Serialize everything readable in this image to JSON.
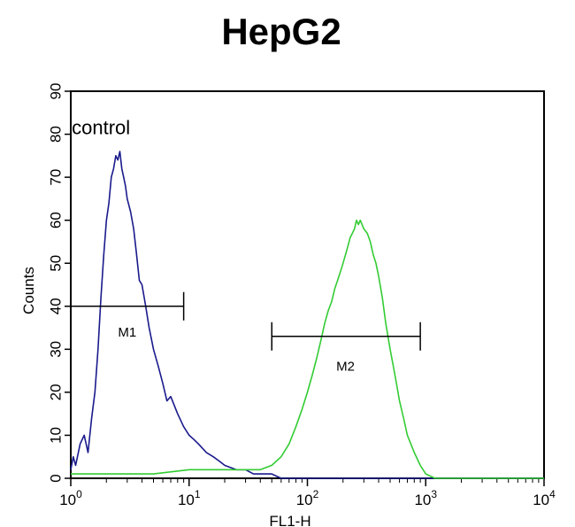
{
  "chart_data": {
    "type": "line",
    "title": "HepG2",
    "xlabel": "FL1-H",
    "ylabel": "Counts",
    "x_scale": "log",
    "xlim": [
      1,
      10000
    ],
    "ylim": [
      0,
      90
    ],
    "x_ticks": [
      {
        "value": 1,
        "base": "10",
        "exp": "0"
      },
      {
        "value": 10,
        "base": "10",
        "exp": "1"
      },
      {
        "value": 100,
        "base": "10",
        "exp": "2"
      },
      {
        "value": 1000,
        "base": "10",
        "exp": "3"
      },
      {
        "value": 10000,
        "base": "10",
        "exp": "4"
      }
    ],
    "y_ticks": [
      0,
      10,
      20,
      30,
      40,
      50,
      60,
      70,
      80,
      90
    ],
    "series": [
      {
        "name": "control",
        "color": "#1a1a8c",
        "x": [
          1.0,
          1.05,
          1.1,
          1.2,
          1.3,
          1.4,
          1.5,
          1.6,
          1.7,
          1.8,
          1.9,
          2.0,
          2.1,
          2.2,
          2.3,
          2.4,
          2.5,
          2.6,
          2.7,
          2.8,
          2.9,
          3.0,
          3.2,
          3.4,
          3.6,
          3.8,
          4.0,
          4.3,
          4.6,
          5.0,
          5.5,
          6.0,
          6.5,
          7.0,
          8.0,
          9.0,
          10.0,
          11.0,
          12.0,
          14.0,
          16.0,
          18.0,
          20.0,
          25.0,
          30.0,
          35.0,
          40.0,
          50.0,
          60.0,
          80.0,
          100.0,
          200.0,
          500.0,
          1000.0,
          10000.0
        ],
        "y": [
          2,
          5,
          3,
          8,
          10,
          6,
          14,
          20,
          30,
          42,
          52,
          60,
          64,
          70,
          72,
          75,
          74,
          76,
          72,
          70,
          68,
          65,
          62,
          58,
          52,
          46,
          45,
          40,
          35,
          30,
          26,
          22,
          18,
          19,
          15,
          12,
          10,
          9,
          8,
          6,
          5,
          4,
          3,
          2,
          2,
          1,
          1,
          1,
          0,
          0,
          0,
          0,
          0,
          0,
          0
        ]
      },
      {
        "name": "",
        "color": "#33cc33",
        "x": [
          1.0,
          2.0,
          5.0,
          10.0,
          20.0,
          30.0,
          40.0,
          50.0,
          60.0,
          70.0,
          80.0,
          90.0,
          100.0,
          110.0,
          120.0,
          130.0,
          140.0,
          150.0,
          160.0,
          170.0,
          180.0,
          190.0,
          200.0,
          210.0,
          220.0,
          230.0,
          240.0,
          250.0,
          260.0,
          270.0,
          280.0,
          300.0,
          320.0,
          340.0,
          360.0,
          380.0,
          400.0,
          430.0,
          460.0,
          500.0,
          550.0,
          600.0,
          650.0,
          700.0,
          800.0,
          900.0,
          1000.0,
          1200.0,
          2000.0,
          10000.0
        ],
        "y": [
          1,
          1,
          1,
          2,
          2,
          2,
          2,
          3,
          5,
          8,
          12,
          16,
          20,
          24,
          28,
          32,
          36,
          39,
          41,
          44,
          46,
          48,
          50,
          52,
          54,
          56,
          57,
          58,
          60,
          59,
          60,
          58,
          57,
          55,
          52,
          50,
          47,
          42,
          36,
          30,
          24,
          18,
          14,
          10,
          6,
          3,
          1,
          0,
          0,
          0
        ]
      }
    ],
    "annotations": [
      {
        "text": "control",
        "x": 1.8,
        "y": 80
      },
      {
        "text": "M1",
        "x": 3.0,
        "y": 33
      },
      {
        "text": "M2",
        "x": 210,
        "y": 25
      }
    ],
    "markers": [
      {
        "name": "M1",
        "x_start": 1.0,
        "x_end": 9.0,
        "y": 40
      },
      {
        "name": "M2",
        "x_start": 50,
        "x_end": 900,
        "y": 33
      }
    ],
    "grid": false
  }
}
